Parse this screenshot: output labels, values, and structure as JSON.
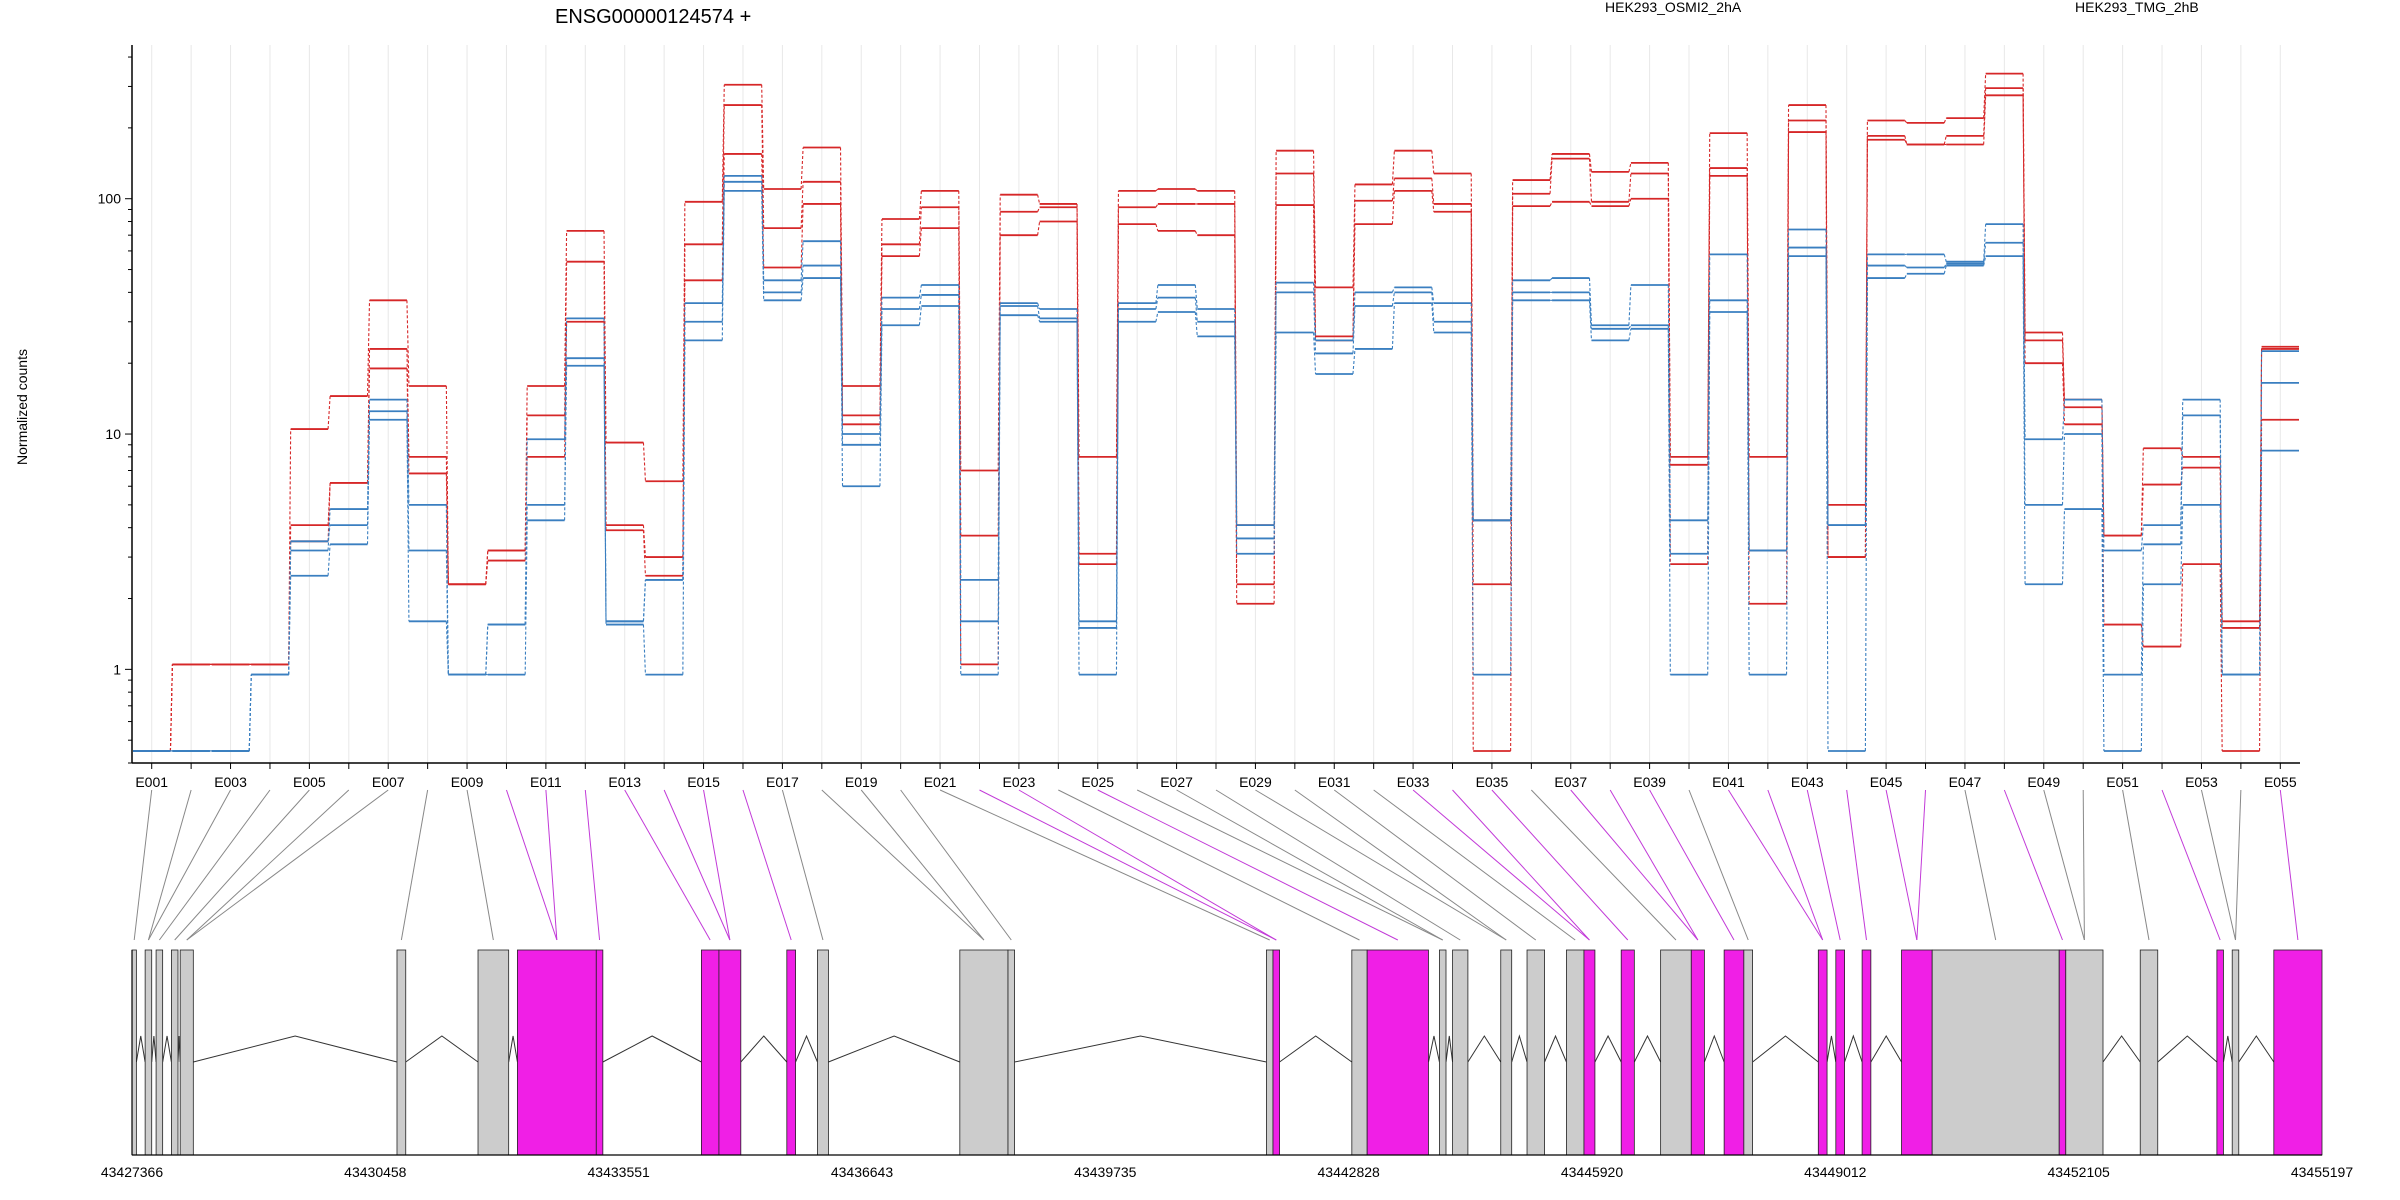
{
  "chart_data": {
    "type": "line",
    "title": "ENSG00000124574 +",
    "ylabel": "Normalized counts",
    "xlabel": "",
    "y_scale": "log",
    "ylim": [
      0.4,
      450
    ],
    "y_ticks": [
      1,
      10,
      100
    ],
    "y_tick_labels": [
      "1",
      "10",
      "100"
    ],
    "legend": {
      "placement": "top",
      "entries": [
        {
          "label": "HEK293_OSMI2_2hA",
          "color": "#d62728"
        },
        {
          "label": "HEK293_TMG_2hB",
          "color": "#3a7fc0"
        }
      ]
    },
    "grid": "vertical",
    "categories": [
      "E001",
      "E002",
      "E003",
      "E004",
      "E005",
      "E006",
      "E007",
      "E008",
      "E009",
      "E010",
      "E011",
      "E012",
      "E013",
      "E014",
      "E015",
      "E016",
      "E017",
      "E018",
      "E019",
      "E020",
      "E021",
      "E022",
      "E023",
      "E024",
      "E025",
      "E026",
      "E027",
      "E028",
      "E029",
      "E030",
      "E031",
      "E032",
      "E033",
      "E034",
      "E035",
      "E036",
      "E037",
      "E038",
      "E039",
      "E040",
      "E041",
      "E042",
      "E043",
      "E044",
      "E045",
      "E046",
      "E047",
      "E048",
      "E049",
      "E050",
      "E051",
      "E052",
      "E053",
      "E054",
      "E055"
    ],
    "x_tick_labels": [
      "E001",
      "E003",
      "E005",
      "E007",
      "E009",
      "E011",
      "E013",
      "E015",
      "E017",
      "E019",
      "E021",
      "E023",
      "E025",
      "E027",
      "E029",
      "E031",
      "E033",
      "E035",
      "E037",
      "E039",
      "E041",
      "E043",
      "E045",
      "E047",
      "E049",
      "E051",
      "E053",
      "E055"
    ],
    "series": [
      {
        "group": "HEK293_OSMI2_2hA",
        "values": [
          0.45,
          1.05,
          1.05,
          1.05,
          10.5,
          14.5,
          37,
          16,
          2.3,
          3.2,
          16,
          73,
          9.2,
          6.3,
          97,
          305,
          110,
          165,
          16,
          82,
          108,
          7,
          104,
          95,
          8,
          108,
          110,
          108,
          4.1,
          160,
          42,
          115,
          160,
          128,
          4.3,
          120,
          155,
          130,
          142,
          8,
          190,
          8,
          250,
          5,
          215,
          210,
          220,
          340,
          27,
          14,
          3.7,
          8.7,
          8,
          1.6,
          23.5
        ]
      },
      {
        "group": "HEK293_OSMI2_2hA",
        "values": [
          0.45,
          1.05,
          1.05,
          1.05,
          4.1,
          6.2,
          23,
          8,
          2.3,
          3.2,
          12,
          54,
          4.1,
          3,
          64,
          250,
          75,
          118,
          12,
          64,
          92,
          3.7,
          88,
          92,
          3.1,
          92,
          95,
          95,
          2.3,
          128,
          26,
          98,
          122,
          95,
          2.3,
          105,
          148,
          97,
          128,
          7.4,
          135,
          3.2,
          215,
          3,
          185,
          170,
          185,
          295,
          25,
          13,
          3.7,
          6.1,
          7.2,
          1.5,
          23
        ]
      },
      {
        "group": "HEK293_OSMI2_2hA",
        "values": [
          0.45,
          1.05,
          1.05,
          1.05,
          3.5,
          6.2,
          19,
          6.8,
          2.3,
          2.9,
          8,
          30,
          3.9,
          2.5,
          45,
          155,
          51,
          95,
          11,
          57,
          75,
          1.05,
          70,
          80,
          2.8,
          78,
          73,
          70,
          1.9,
          94,
          25,
          78,
          108,
          88,
          0.45,
          93,
          97,
          93,
          100,
          2.8,
          125,
          1.9,
          192,
          3,
          178,
          170,
          170,
          275,
          20,
          11,
          1.55,
          1.25,
          2.8,
          0.45,
          11.5
        ]
      },
      {
        "group": "HEK293_TMG_2hB",
        "values": [
          0.45,
          0.45,
          0.45,
          0.95,
          3.2,
          4.8,
          14,
          5,
          0.95,
          1.55,
          9.5,
          31,
          1.6,
          2.4,
          36,
          125,
          45,
          66,
          9,
          38,
          43,
          2.4,
          36,
          34,
          1.6,
          36,
          43,
          34,
          4.1,
          44,
          25,
          40,
          42,
          36,
          4.3,
          45,
          46,
          29,
          43,
          4.3,
          58,
          3.2,
          74,
          4.1,
          58,
          58,
          54,
          78,
          9.5,
          14,
          3.2,
          4.1,
          14,
          0.95,
          22.5
        ]
      },
      {
        "group": "HEK293_TMG_2hB",
        "values": [
          0.45,
          0.45,
          0.45,
          0.95,
          3.5,
          4.1,
          12.5,
          3.2,
          0.95,
          1.55,
          5,
          21,
          1.6,
          2.4,
          30,
          118,
          40,
          52,
          10,
          34,
          39,
          1.6,
          35,
          31,
          1.5,
          34,
          38,
          30,
          3.6,
          40,
          22,
          35,
          40,
          30,
          4.3,
          40,
          40,
          28,
          29,
          3.1,
          37,
          3.2,
          62,
          4.1,
          52,
          51,
          53,
          65,
          5,
          10,
          0.95,
          3.4,
          12,
          0.95,
          16.5
        ]
      },
      {
        "group": "HEK293_TMG_2hB",
        "values": [
          0.45,
          0.45,
          0.45,
          0.95,
          2.5,
          3.4,
          11.5,
          1.6,
          0.95,
          0.95,
          4.3,
          19.5,
          1.55,
          0.95,
          25,
          108,
          37,
          46,
          6,
          29,
          35,
          0.95,
          32,
          30,
          0.95,
          30,
          33,
          26,
          3.1,
          27,
          18,
          23,
          36,
          27,
          0.95,
          37,
          37,
          25,
          28,
          0.95,
          33,
          0.95,
          57,
          0.45,
          46,
          48,
          52,
          57,
          2.3,
          4.8,
          0.45,
          2.3,
          5,
          0.95,
          8.5
        ]
      }
    ]
  },
  "gene_model": {
    "coordinate_labels": [
      "43427366",
      "43430458",
      "43433551",
      "43436643",
      "43439735",
      "43442828",
      "43445920",
      "43449012",
      "43452105",
      "43455197"
    ]
  }
}
